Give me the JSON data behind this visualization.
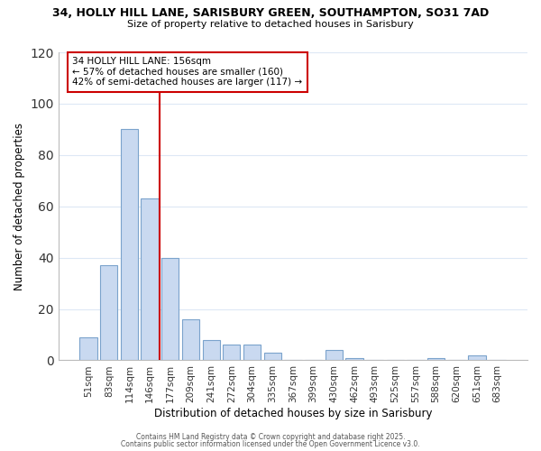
{
  "title_line1": "34, HOLLY HILL LANE, SARISBURY GREEN, SOUTHAMPTON, SO31 7AD",
  "title_line2": "Size of property relative to detached houses in Sarisbury",
  "bar_labels": [
    "51sqm",
    "83sqm",
    "114sqm",
    "146sqm",
    "177sqm",
    "209sqm",
    "241sqm",
    "272sqm",
    "304sqm",
    "335sqm",
    "367sqm",
    "399sqm",
    "430sqm",
    "462sqm",
    "493sqm",
    "525sqm",
    "557sqm",
    "588sqm",
    "620sqm",
    "651sqm",
    "683sqm"
  ],
  "bar_values": [
    9,
    37,
    90,
    63,
    40,
    16,
    8,
    6,
    6,
    3,
    0,
    0,
    4,
    1,
    0,
    0,
    0,
    1,
    0,
    2,
    0
  ],
  "bar_color": "#c9d9f0",
  "bar_edge_color": "#7ba3cc",
  "vline_color": "#cc0000",
  "vline_x_index": 3.5,
  "xlabel": "Distribution of detached houses by size in Sarisbury",
  "ylabel": "Number of detached properties",
  "ylim": [
    0,
    120
  ],
  "yticks": [
    0,
    20,
    40,
    60,
    80,
    100,
    120
  ],
  "annotation_title": "34 HOLLY HILL LANE: 156sqm",
  "annotation_line2": "← 57% of detached houses are smaller (160)",
  "annotation_line3": "42% of semi-detached houses are larger (117) →",
  "footer_line1": "Contains HM Land Registry data © Crown copyright and database right 2025.",
  "footer_line2": "Contains public sector information licensed under the Open Government Licence v3.0.",
  "background_color": "#ffffff",
  "grid_color": "#dde8f5"
}
